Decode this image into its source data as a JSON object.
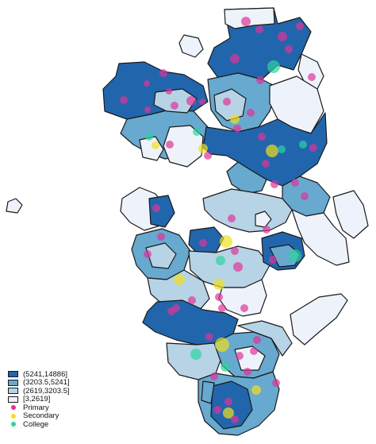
{
  "map": {
    "classes": [
      {
        "label": "(5241,14886]",
        "color": "#2166ac"
      },
      {
        "label": "(3203.5,5241]",
        "color": "#67a9cf"
      },
      {
        "label": "(2619,3203.5]",
        "color": "#b7d3e6"
      },
      {
        "label": "[3,2619]",
        "color": "#eef3fb"
      }
    ],
    "point_types": [
      {
        "label": "Primary",
        "color": "#e0339a"
      },
      {
        "label": "Secondary",
        "color": "#f0e020"
      },
      {
        "label": "College",
        "color": "#2ed3a0"
      }
    ]
  }
}
